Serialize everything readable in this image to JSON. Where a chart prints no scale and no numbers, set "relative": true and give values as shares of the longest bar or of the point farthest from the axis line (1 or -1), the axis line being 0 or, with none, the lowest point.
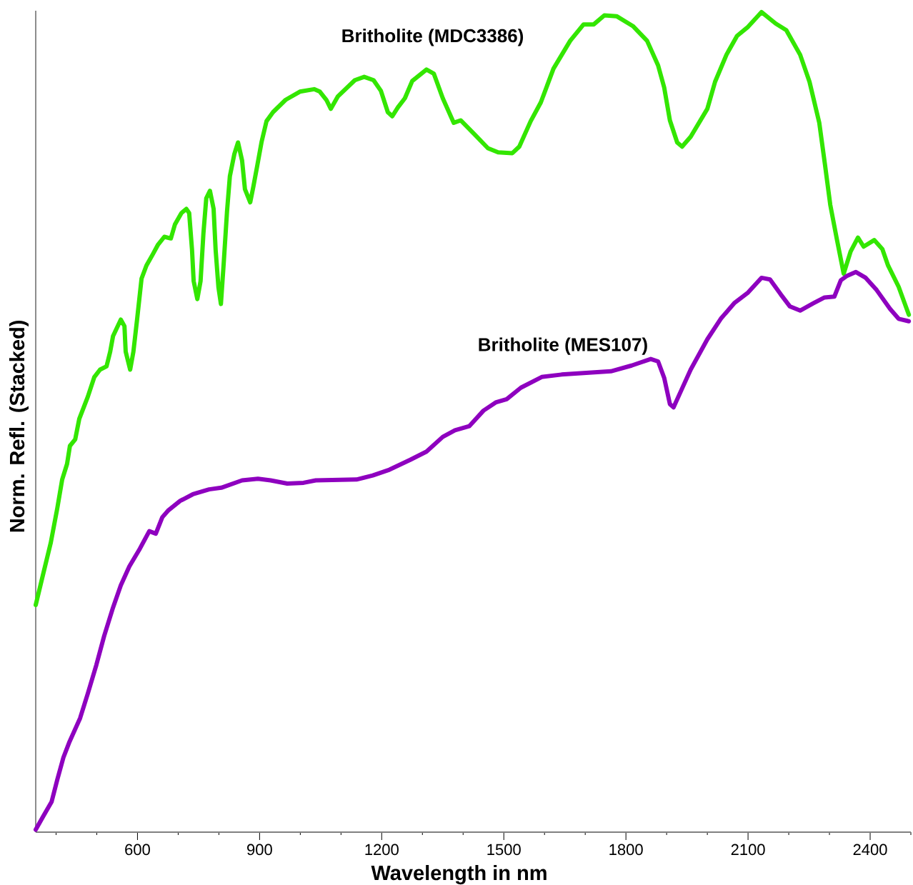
{
  "chart_data": {
    "type": "line",
    "relative": true,
    "xlabel": "Wavelength in nm",
    "ylabel": "Norm. Refl. (Stacked)",
    "xlim": [
      350,
      2500
    ],
    "xticks": [
      {
        "value": 400,
        "label": null
      },
      {
        "value": 500,
        "label": null
      },
      600,
      {
        "value": 700,
        "label": null
      },
      {
        "value": 800,
        "label": null
      },
      900,
      {
        "value": 1000,
        "label": null
      },
      {
        "value": 1100,
        "label": null
      },
      1200,
      {
        "value": 1300,
        "label": null
      },
      {
        "value": 1400,
        "label": null
      },
      1500,
      {
        "value": 1600,
        "label": null
      },
      {
        "value": 1700,
        "label": null
      },
      1800,
      {
        "value": 1900,
        "label": null
      },
      {
        "value": 2000,
        "label": null
      },
      2100,
      {
        "value": 2200,
        "label": null
      },
      {
        "value": 2300,
        "label": null
      },
      2400,
      {
        "value": 2500,
        "label": null
      }
    ],
    "series": [
      {
        "name": "Britholite (MDC3386)",
        "color": "#33e600",
        "x": [
          350,
          364,
          387,
          403,
          415,
          427,
          434,
          447,
          457,
          478,
          494,
          508,
          524,
          533,
          540,
          559,
          568,
          571,
          582,
          590,
          599,
          610,
          622,
          638,
          650,
          666,
          682,
          692,
          708,
          720,
          727,
          734,
          738,
          747,
          755,
          762,
          769,
          778,
          787,
          792,
          799,
          805,
          812,
          820,
          827,
          838,
          847,
          857,
          864,
          877,
          885,
          894,
          905,
          917,
          933,
          964,
          999,
          1034,
          1048,
          1064,
          1075,
          1092,
          1134,
          1157,
          1180,
          1198,
          1215,
          1226,
          1240,
          1257,
          1275,
          1310,
          1328,
          1350,
          1377,
          1394,
          1426,
          1461,
          1486,
          1521,
          1538,
          1566,
          1591,
          1622,
          1663,
          1696,
          1721,
          1747,
          1777,
          1817,
          1852,
          1879,
          1894,
          1908,
          1926,
          1938,
          1959,
          2000,
          2019,
          2047,
          2073,
          2100,
          2133,
          2168,
          2194,
          2228,
          2251,
          2275,
          2289,
          2302,
          2319,
          2335,
          2352,
          2370,
          2384,
          2410,
          2430,
          2444,
          2470,
          2495
        ],
        "values": [
          0.277,
          0.306,
          0.353,
          0.395,
          0.43,
          0.449,
          0.471,
          0.479,
          0.504,
          0.531,
          0.555,
          0.564,
          0.568,
          0.586,
          0.605,
          0.625,
          0.617,
          0.586,
          0.564,
          0.586,
          0.625,
          0.675,
          0.691,
          0.705,
          0.716,
          0.726,
          0.724,
          0.741,
          0.755,
          0.76,
          0.755,
          0.71,
          0.672,
          0.65,
          0.672,
          0.73,
          0.773,
          0.782,
          0.76,
          0.71,
          0.664,
          0.644,
          0.695,
          0.757,
          0.8,
          0.827,
          0.841,
          0.819,
          0.784,
          0.768,
          0.788,
          0.812,
          0.842,
          0.867,
          0.878,
          0.893,
          0.903,
          0.906,
          0.903,
          0.893,
          0.882,
          0.897,
          0.917,
          0.921,
          0.917,
          0.904,
          0.878,
          0.873,
          0.884,
          0.895,
          0.916,
          0.93,
          0.925,
          0.895,
          0.865,
          0.868,
          0.852,
          0.834,
          0.829,
          0.828,
          0.836,
          0.867,
          0.89,
          0.931,
          0.965,
          0.985,
          0.985,
          0.996,
          0.995,
          0.983,
          0.965,
          0.935,
          0.908,
          0.868,
          0.841,
          0.836,
          0.848,
          0.882,
          0.915,
          0.948,
          0.971,
          0.982,
          1.0,
          0.986,
          0.978,
          0.948,
          0.915,
          0.865,
          0.814,
          0.765,
          0.721,
          0.681,
          0.708,
          0.725,
          0.714,
          0.722,
          0.711,
          0.691,
          0.665,
          0.631
        ]
      },
      {
        "name": "Britholite (MES107)",
        "color": "#8e00bf",
        "x": [
          350,
          368,
          389,
          403,
          418,
          432,
          459,
          478,
          499,
          518,
          540,
          559,
          580,
          604,
          629,
          645,
          661,
          675,
          705,
          736,
          776,
          806,
          857,
          896,
          927,
          968,
          1008,
          1038,
          1138,
          1178,
          1219,
          1270,
          1310,
          1350,
          1380,
          1415,
          1450,
          1480,
          1507,
          1542,
          1593,
          1642,
          1763,
          1814,
          1861,
          1879,
          1894,
          1908,
          1917,
          1938,
          1959,
          2000,
          2033,
          2066,
          2100,
          2133,
          2154,
          2180,
          2203,
          2228,
          2261,
          2288,
          2312,
          2328,
          2342,
          2365,
          2389,
          2416,
          2449,
          2470,
          2495
        ],
        "values": [
          0.003,
          0.019,
          0.037,
          0.064,
          0.091,
          0.109,
          0.139,
          0.169,
          0.204,
          0.239,
          0.274,
          0.301,
          0.324,
          0.344,
          0.367,
          0.364,
          0.384,
          0.392,
          0.404,
          0.412,
          0.418,
          0.42,
          0.429,
          0.431,
          0.429,
          0.425,
          0.426,
          0.429,
          0.43,
          0.435,
          0.442,
          0.454,
          0.464,
          0.482,
          0.49,
          0.495,
          0.514,
          0.524,
          0.528,
          0.542,
          0.555,
          0.558,
          0.562,
          0.569,
          0.577,
          0.574,
          0.554,
          0.522,
          0.518,
          0.541,
          0.564,
          0.601,
          0.626,
          0.645,
          0.658,
          0.676,
          0.674,
          0.656,
          0.641,
          0.636,
          0.645,
          0.652,
          0.653,
          0.673,
          0.678,
          0.683,
          0.676,
          0.661,
          0.638,
          0.626,
          0.623
        ]
      }
    ]
  }
}
